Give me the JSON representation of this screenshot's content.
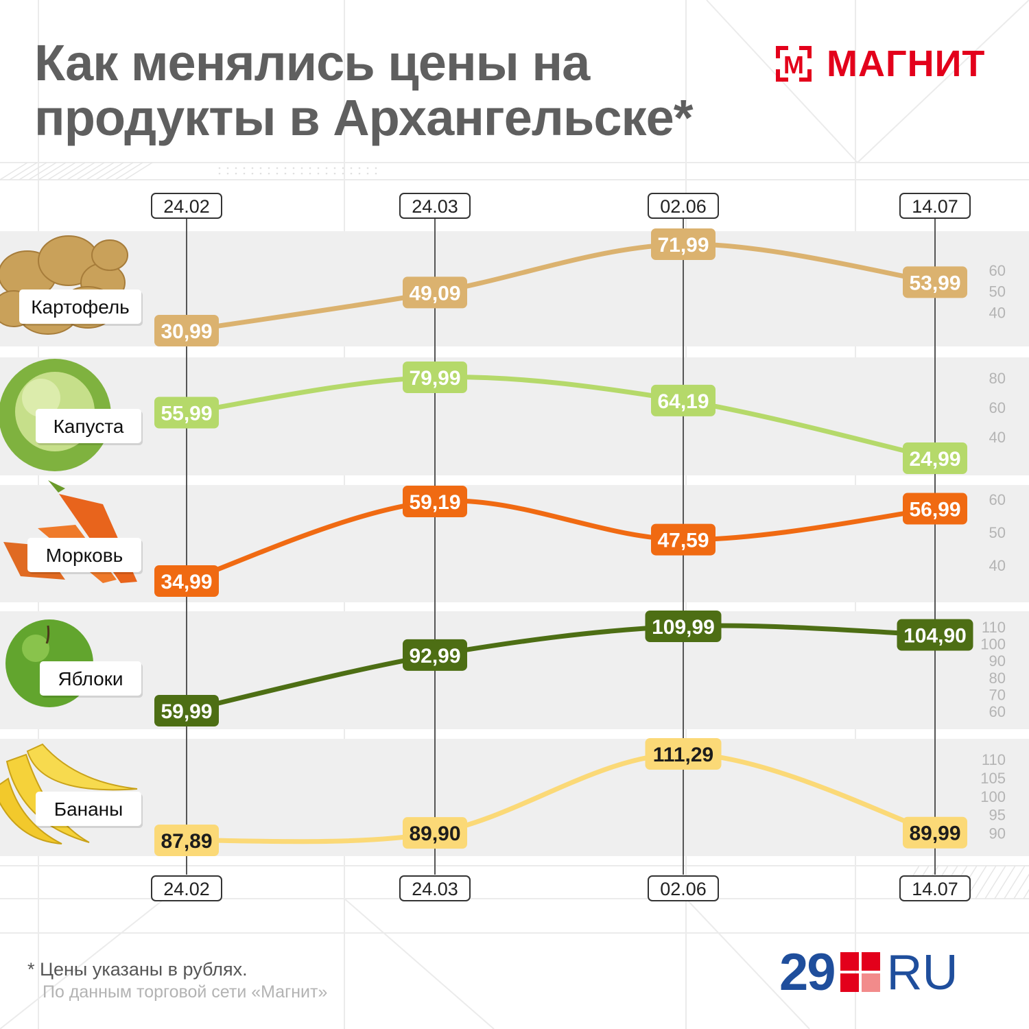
{
  "title_lines": [
    "Как менялись цены на",
    "продукты в Архангельске*"
  ],
  "brand": {
    "name": "МАГНИТ",
    "mark_letter": "М",
    "color": "#e3001b"
  },
  "footer": {
    "note": "* Цены указаны в рублях.",
    "source": "По данным торговой сети «Магнит»",
    "publisher": {
      "number": "29",
      "suffix": "RU",
      "number_color": "#1f4e9c",
      "square_colors": [
        "#e3001b",
        "#e3001b",
        "#e3001b",
        "#f28b8b"
      ]
    }
  },
  "chart_data": {
    "type": "line",
    "categories": [
      "24.02",
      "24.03",
      "02.06",
      "14.07"
    ],
    "series": [
      {
        "name": "Картофель",
        "icon": "potato-icon",
        "color": "#dbb26f",
        "label_text_color": "#ffffff",
        "values": [
          30.99,
          49.09,
          71.99,
          53.99
        ],
        "labels": [
          "30,99",
          "49,09",
          "71,99",
          "53,99"
        ],
        "ylim": [
          30.99,
          71.99
        ],
        "ticks": [
          "60",
          "50",
          "40"
        ],
        "tick_values": [
          60,
          50,
          40
        ]
      },
      {
        "name": "Капуста",
        "icon": "cabbage-icon",
        "color": "#b5d96a",
        "label_text_color": "#ffffff",
        "values": [
          55.99,
          79.99,
          64.19,
          24.99
        ],
        "labels": [
          "55,99",
          "79,99",
          "64,19",
          "24,99"
        ],
        "ylim": [
          24.99,
          79.99
        ],
        "ticks": [
          "80",
          "60",
          "40"
        ],
        "tick_values": [
          80,
          60,
          40
        ]
      },
      {
        "name": "Морковь",
        "icon": "carrot-icon",
        "color": "#f06a12",
        "label_text_color": "#ffffff",
        "values": [
          34.99,
          59.19,
          47.59,
          56.99
        ],
        "labels": [
          "34,99",
          "59,19",
          "47,59",
          "56,99"
        ],
        "ylim": [
          34.99,
          59.19
        ],
        "ticks": [
          "60",
          "50",
          "40"
        ],
        "tick_values": [
          60,
          50,
          40
        ]
      },
      {
        "name": "Яблоки",
        "icon": "apple-icon",
        "color": "#4d6e14",
        "label_text_color": "#ffffff",
        "values": [
          59.99,
          92.99,
          109.99,
          104.9
        ],
        "labels": [
          "59,99",
          "92,99",
          "109,99",
          "104,90"
        ],
        "ylim": [
          59.99,
          109.99
        ],
        "ticks": [
          "110",
          "100",
          "90",
          "80",
          "70",
          "60"
        ],
        "tick_values": [
          110,
          100,
          90,
          80,
          70,
          60
        ]
      },
      {
        "name": "Бананы",
        "icon": "banana-icon",
        "color": "#fbd977",
        "label_text_color": "#1c1c1c",
        "values": [
          87.89,
          89.9,
          111.29,
          89.99
        ],
        "labels": [
          "87,89",
          "89,90",
          "111,29",
          "89,99"
        ],
        "ylim": [
          87.89,
          111.29
        ],
        "ticks": [
          "110",
          "105",
          "100",
          "95",
          "90"
        ],
        "tick_values": [
          110,
          105,
          100,
          95,
          90
        ]
      }
    ],
    "colors": {
      "band": "#efefef",
      "axis": "#555555",
      "tick_text": "#b4b4b4"
    },
    "grid": true,
    "legend": "left"
  }
}
